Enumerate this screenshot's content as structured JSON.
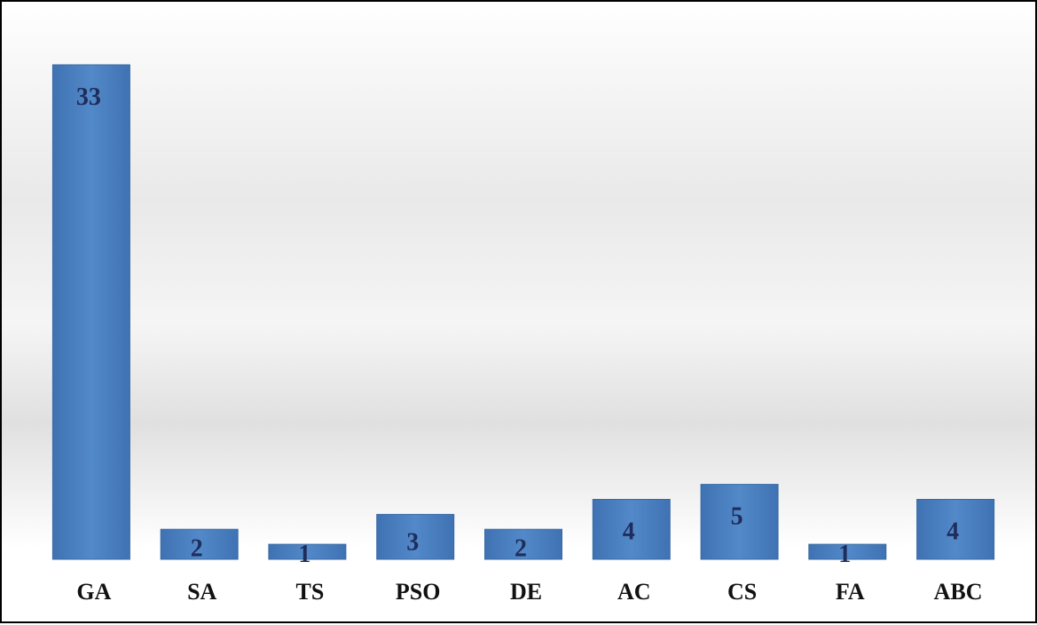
{
  "chart_data": {
    "type": "bar",
    "categories": [
      "GA",
      "SA",
      "TS",
      "PSO",
      "DE",
      "AC",
      "CS",
      "FA",
      "ABC"
    ],
    "values": [
      33,
      2,
      1,
      3,
      2,
      4,
      5,
      1,
      4
    ],
    "title": "",
    "xlabel": "",
    "ylabel": "",
    "ylim": [
      0,
      33
    ],
    "grid": false,
    "legend": "none",
    "data_labels": true,
    "colors": {
      "bar": "#4a7ebb",
      "bar_edge": "#3a6aa5",
      "value_label": "#1f2d5c",
      "tick_label": "#111111",
      "border": "#000000"
    }
  }
}
